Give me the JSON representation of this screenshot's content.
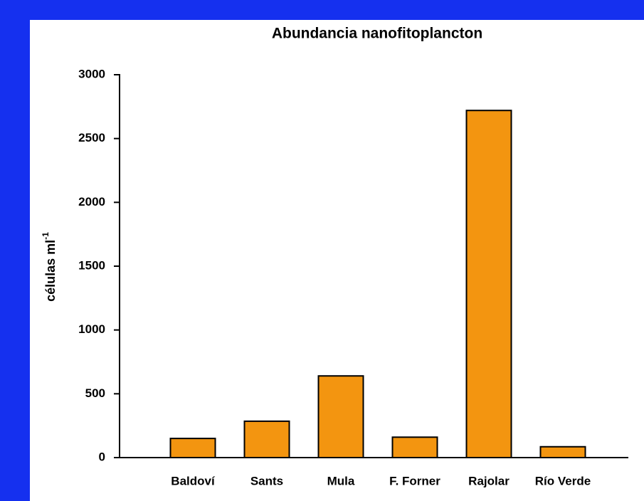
{
  "chart_data": {
    "type": "bar",
    "title": "Abundancia nanofitoplancton",
    "ylabel": "células ml",
    "ylabel_superscript": "-1",
    "categories": [
      "Baldoví",
      "Sants",
      "Mula",
      "F. Forner",
      "Rajolar",
      "Río Verde"
    ],
    "values": [
      150,
      285,
      640,
      160,
      2720,
      85
    ],
    "color": "#f39510",
    "ylim": [
      0,
      3000
    ],
    "yticks": [
      0,
      500,
      1000,
      1500,
      2000,
      2500,
      3000
    ],
    "grid": false
  }
}
